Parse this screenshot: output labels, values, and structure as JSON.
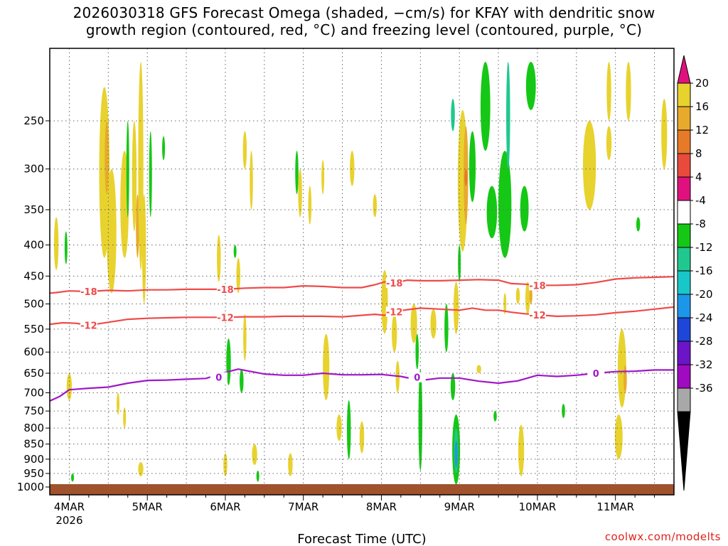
{
  "chart_data": {
    "type": "heatmap",
    "title_line1": "2026030318 GFS Forecast Omega (shaded, −cm/s) for KFAY with dendritic snow",
    "title_line2": "growth region (contoured, red, °C) and freezing level (contoured, purple, °C)",
    "xlabel": "Forecast Time (UTC)",
    "credit": "coolwx.com/modelts",
    "y_axis": {
      "scale": "log-pressure",
      "range_hpa": [
        1030,
        190
      ],
      "ticks": [
        "250",
        "300",
        "350",
        "400",
        "450",
        "500",
        "550",
        "600",
        "650",
        "700",
        "750",
        "800",
        "850",
        "900",
        "950",
        "1000"
      ]
    },
    "x_axis": {
      "range_hours": [
        0,
        192
      ],
      "ticks": [
        {
          "label": "4MAR",
          "sub": "2026",
          "hour": 6
        },
        {
          "label": "5MAR",
          "sub": "",
          "hour": 30
        },
        {
          "label": "6MAR",
          "sub": "",
          "hour": 54
        },
        {
          "label": "7MAR",
          "sub": "",
          "hour": 78
        },
        {
          "label": "8MAR",
          "sub": "",
          "hour": 102
        },
        {
          "label": "9MAR",
          "sub": "",
          "hour": 126
        },
        {
          "label": "10MAR",
          "sub": "",
          "hour": 150
        },
        {
          "label": "11MAR",
          "sub": "",
          "hour": 174
        }
      ]
    },
    "colorbar": {
      "labels": [
        "20",
        "16",
        "12",
        "8",
        "4",
        "-4",
        "-8",
        "-12",
        "-16",
        "-20",
        "-24",
        "-28",
        "-32",
        "-36"
      ],
      "colors": [
        "#e8d22e",
        "#e8aa2c",
        "#e67a28",
        "#e94a3c",
        "#e0117f",
        "#ffffff",
        "#15c815",
        "#20c890",
        "#18c8c8",
        "#1c96e8",
        "#1e46d8",
        "#6c14c8",
        "#a00ac0",
        "#a8a8a8"
      ],
      "top_arrow_color": "#e0117f",
      "bottom_arrow_color": "#000000"
    },
    "colors": {
      "dgz_contour": "#ef4a4a",
      "freezing_contour": "#a018c8",
      "ground": "#a0522d",
      "grid": "#666666"
    },
    "contours": [
      {
        "label": "-18",
        "color": "#ef4a4a",
        "points": [
          [
            0,
            480
          ],
          [
            2,
            479
          ],
          [
            6,
            476
          ],
          [
            12,
            477
          ],
          [
            18,
            475
          ],
          [
            24,
            476
          ],
          [
            30,
            474
          ],
          [
            36,
            474
          ],
          [
            42,
            473
          ],
          [
            48,
            473
          ],
          [
            54,
            473
          ],
          [
            60,
            471
          ],
          [
            66,
            470
          ],
          [
            72,
            470
          ],
          [
            78,
            467
          ],
          [
            84,
            468
          ],
          [
            90,
            470
          ],
          [
            96,
            470
          ],
          [
            100,
            465
          ],
          [
            103,
            460
          ],
          [
            106,
            462
          ],
          [
            110,
            457
          ],
          [
            114,
            458
          ],
          [
            120,
            458
          ],
          [
            126,
            457
          ],
          [
            132,
            456
          ],
          [
            138,
            457
          ],
          [
            142,
            463
          ],
          [
            146,
            464
          ],
          [
            150,
            466
          ],
          [
            156,
            466
          ],
          [
            162,
            465
          ],
          [
            168,
            461
          ],
          [
            174,
            455
          ],
          [
            180,
            453
          ],
          [
            186,
            452
          ],
          [
            192,
            451
          ]
        ],
        "label_positions": [
          [
            12,
            477
          ],
          [
            54,
            473
          ],
          [
            106,
            462
          ],
          [
            150,
            466
          ]
        ]
      },
      {
        "label": "-12",
        "color": "#ef4a4a",
        "points": [
          [
            0,
            540
          ],
          [
            4,
            537
          ],
          [
            8,
            538
          ],
          [
            12,
            542
          ],
          [
            18,
            536
          ],
          [
            24,
            530
          ],
          [
            30,
            528
          ],
          [
            36,
            527
          ],
          [
            42,
            526
          ],
          [
            48,
            526
          ],
          [
            54,
            526
          ],
          [
            60,
            525
          ],
          [
            66,
            525
          ],
          [
            72,
            524
          ],
          [
            78,
            524
          ],
          [
            84,
            524
          ],
          [
            90,
            525
          ],
          [
            96,
            522
          ],
          [
            100,
            520
          ],
          [
            103,
            522
          ],
          [
            106,
            515
          ],
          [
            110,
            511
          ],
          [
            114,
            508
          ],
          [
            120,
            510
          ],
          [
            126,
            512
          ],
          [
            130,
            508
          ],
          [
            134,
            512
          ],
          [
            138,
            512
          ],
          [
            142,
            516
          ],
          [
            146,
            519
          ],
          [
            150,
            521
          ],
          [
            156,
            524
          ],
          [
            162,
            523
          ],
          [
            168,
            521
          ],
          [
            174,
            517
          ],
          [
            180,
            514
          ],
          [
            186,
            510
          ],
          [
            192,
            506
          ]
        ],
        "label_positions": [
          [
            12,
            542
          ],
          [
            54,
            526
          ],
          [
            106,
            515
          ],
          [
            150,
            521
          ]
        ]
      },
      {
        "label": "0",
        "color": "#a018c8",
        "points": [
          [
            0,
            722
          ],
          [
            3,
            710
          ],
          [
            6,
            692
          ],
          [
            12,
            688
          ],
          [
            18,
            685
          ],
          [
            24,
            675
          ],
          [
            30,
            668
          ],
          [
            36,
            667
          ],
          [
            42,
            665
          ],
          [
            48,
            663
          ],
          [
            54,
            648
          ],
          [
            58,
            640
          ],
          [
            60,
            643
          ],
          [
            66,
            652
          ],
          [
            72,
            655
          ],
          [
            78,
            655
          ],
          [
            84,
            650
          ],
          [
            90,
            654
          ],
          [
            96,
            654
          ],
          [
            102,
            653
          ],
          [
            108,
            658
          ],
          [
            114,
            668
          ],
          [
            120,
            662
          ],
          [
            126,
            662
          ],
          [
            132,
            670
          ],
          [
            138,
            675
          ],
          [
            144,
            669
          ],
          [
            150,
            655
          ],
          [
            156,
            658
          ],
          [
            162,
            655
          ],
          [
            168,
            650
          ],
          [
            174,
            646
          ],
          [
            180,
            645
          ],
          [
            186,
            642
          ],
          [
            192,
            642
          ]
        ],
        "label_positions": [
          [
            52,
            660
          ],
          [
            113,
            660
          ],
          [
            168,
            650
          ]
        ]
      }
    ]
  }
}
